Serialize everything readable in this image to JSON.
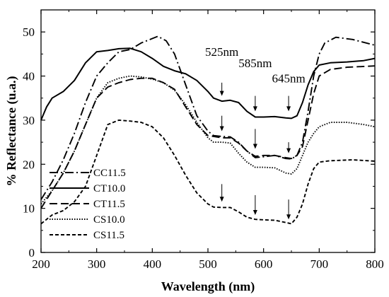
{
  "chart_data": {
    "type": "line",
    "title": "",
    "xlabel": "Wavelength (nm)",
    "ylabel": "% Reflectance (u.a.)",
    "xlim": [
      200,
      800
    ],
    "ylim": [
      0,
      55
    ],
    "xticks": [
      200,
      300,
      400,
      500,
      600,
      700,
      800
    ],
    "yticks": [
      0,
      10,
      20,
      30,
      40,
      50
    ],
    "grid": false,
    "legend_position": "lower-left",
    "series": [
      {
        "name": "CC11.5",
        "dash": "dashdot",
        "points": [
          [
            200,
            12
          ],
          [
            220,
            16
          ],
          [
            240,
            21
          ],
          [
            260,
            27
          ],
          [
            280,
            34
          ],
          [
            300,
            40
          ],
          [
            320,
            43
          ],
          [
            340,
            45.5
          ],
          [
            360,
            46
          ],
          [
            380,
            47.5
          ],
          [
            400,
            48.5
          ],
          [
            410,
            49
          ],
          [
            425,
            48
          ],
          [
            440,
            45
          ],
          [
            460,
            38
          ],
          [
            480,
            31
          ],
          [
            500,
            27.5
          ],
          [
            510,
            26.5
          ],
          [
            525,
            26.3
          ],
          [
            540,
            26.2
          ],
          [
            555,
            25
          ],
          [
            570,
            23
          ],
          [
            585,
            21.5
          ],
          [
            600,
            21.7
          ],
          [
            620,
            22
          ],
          [
            640,
            21.3
          ],
          [
            650,
            21.2
          ],
          [
            660,
            22
          ],
          [
            670,
            25
          ],
          [
            680,
            32
          ],
          [
            690,
            40
          ],
          [
            700,
            45
          ],
          [
            710,
            47.5
          ],
          [
            730,
            48.8
          ],
          [
            760,
            48.3
          ],
          [
            800,
            47
          ]
        ]
      },
      {
        "name": "CT10.0",
        "dash": "solid",
        "points": [
          [
            200,
            30
          ],
          [
            210,
            33
          ],
          [
            220,
            35
          ],
          [
            240,
            36.5
          ],
          [
            260,
            39
          ],
          [
            280,
            43
          ],
          [
            300,
            45.5
          ],
          [
            320,
            45.8
          ],
          [
            340,
            46.2
          ],
          [
            360,
            46.3
          ],
          [
            380,
            45.5
          ],
          [
            400,
            44
          ],
          [
            420,
            42.2
          ],
          [
            440,
            41.2
          ],
          [
            460,
            40.5
          ],
          [
            480,
            39
          ],
          [
            500,
            36.5
          ],
          [
            510,
            35
          ],
          [
            525,
            34.3
          ],
          [
            540,
            34.5
          ],
          [
            555,
            34
          ],
          [
            570,
            32
          ],
          [
            585,
            30.7
          ],
          [
            600,
            30.7
          ],
          [
            620,
            30.8
          ],
          [
            640,
            30.5
          ],
          [
            650,
            30.4
          ],
          [
            660,
            31
          ],
          [
            670,
            34
          ],
          [
            680,
            38
          ],
          [
            690,
            41
          ],
          [
            700,
            42.5
          ],
          [
            720,
            43
          ],
          [
            750,
            43.2
          ],
          [
            780,
            43.5
          ],
          [
            800,
            44
          ]
        ]
      },
      {
        "name": "CT11.5",
        "dash": "dashed",
        "points": [
          [
            200,
            10
          ],
          [
            220,
            14
          ],
          [
            240,
            18
          ],
          [
            260,
            23
          ],
          [
            280,
            29
          ],
          [
            300,
            35
          ],
          [
            320,
            37.5
          ],
          [
            340,
            38.5
          ],
          [
            360,
            39.2
          ],
          [
            380,
            39.5
          ],
          [
            400,
            39.5
          ],
          [
            420,
            38.5
          ],
          [
            440,
            37
          ],
          [
            460,
            33
          ],
          [
            480,
            29
          ],
          [
            500,
            26.5
          ],
          [
            510,
            26.3
          ],
          [
            525,
            26
          ],
          [
            540,
            26
          ],
          [
            555,
            24.8
          ],
          [
            570,
            23
          ],
          [
            585,
            21.8
          ],
          [
            600,
            22
          ],
          [
            620,
            22
          ],
          [
            640,
            21.5
          ],
          [
            650,
            21.3
          ],
          [
            660,
            22
          ],
          [
            670,
            24
          ],
          [
            680,
            30
          ],
          [
            690,
            36
          ],
          [
            700,
            40
          ],
          [
            720,
            41.5
          ],
          [
            750,
            42
          ],
          [
            800,
            42.3
          ]
        ]
      },
      {
        "name": "CS10.0",
        "dash": "dotted",
        "points": [
          [
            200,
            11
          ],
          [
            220,
            14
          ],
          [
            240,
            18
          ],
          [
            260,
            23
          ],
          [
            280,
            29
          ],
          [
            300,
            35
          ],
          [
            320,
            38.5
          ],
          [
            340,
            39.5
          ],
          [
            360,
            40
          ],
          [
            380,
            39.8
          ],
          [
            400,
            39.3
          ],
          [
            420,
            38.5
          ],
          [
            440,
            36.8
          ],
          [
            460,
            33.5
          ],
          [
            480,
            29.5
          ],
          [
            500,
            26
          ],
          [
            510,
            25
          ],
          [
            525,
            25
          ],
          [
            540,
            24.8
          ],
          [
            555,
            22.5
          ],
          [
            570,
            20.5
          ],
          [
            585,
            19.3
          ],
          [
            600,
            19.3
          ],
          [
            620,
            19.2
          ],
          [
            640,
            18
          ],
          [
            650,
            17.8
          ],
          [
            660,
            19
          ],
          [
            670,
            22
          ],
          [
            680,
            25
          ],
          [
            690,
            27
          ],
          [
            700,
            28.5
          ],
          [
            720,
            29.5
          ],
          [
            750,
            29.5
          ],
          [
            780,
            29
          ],
          [
            800,
            28.5
          ]
        ]
      },
      {
        "name": "CS11.5",
        "dash": "short-dash",
        "points": [
          [
            200,
            6.5
          ],
          [
            220,
            8.5
          ],
          [
            240,
            9.5
          ],
          [
            260,
            11.5
          ],
          [
            280,
            15
          ],
          [
            300,
            22
          ],
          [
            320,
            29
          ],
          [
            340,
            30
          ],
          [
            360,
            29.8
          ],
          [
            380,
            29.5
          ],
          [
            400,
            28.5
          ],
          [
            420,
            26
          ],
          [
            440,
            22
          ],
          [
            460,
            17.5
          ],
          [
            480,
            13.5
          ],
          [
            500,
            11
          ],
          [
            510,
            10.3
          ],
          [
            525,
            10.2
          ],
          [
            540,
            10.2
          ],
          [
            555,
            9.2
          ],
          [
            570,
            8
          ],
          [
            585,
            7.5
          ],
          [
            600,
            7.4
          ],
          [
            620,
            7.3
          ],
          [
            640,
            6.8
          ],
          [
            650,
            6.5
          ],
          [
            660,
            8
          ],
          [
            670,
            11
          ],
          [
            680,
            15.5
          ],
          [
            690,
            19
          ],
          [
            700,
            20.5
          ],
          [
            720,
            20.8
          ],
          [
            760,
            21
          ],
          [
            800,
            20.7
          ]
        ]
      }
    ],
    "annotations": [
      {
        "text": "525nm",
        "x": 525,
        "label_y": 45.5
      },
      {
        "text": "585nm",
        "x": 585,
        "label_y": 43
      },
      {
        "text": "645nm",
        "x": 645,
        "label_y": 39.5
      }
    ],
    "arrows": [
      {
        "x": 525,
        "from": 38.5,
        "to": 35.5
      },
      {
        "x": 585,
        "from": 35.5,
        "to": 32
      },
      {
        "x": 645,
        "from": 35.5,
        "to": 32
      },
      {
        "x": 525,
        "from": 31,
        "to": 27.5
      },
      {
        "x": 585,
        "from": 28,
        "to": 23.5
      },
      {
        "x": 645,
        "from": 25,
        "to": 22.5
      },
      {
        "x": 525,
        "from": 15.5,
        "to": 11.5
      },
      {
        "x": 585,
        "from": 13,
        "to": 8.5
      },
      {
        "x": 645,
        "from": 12,
        "to": 7.5
      }
    ]
  }
}
